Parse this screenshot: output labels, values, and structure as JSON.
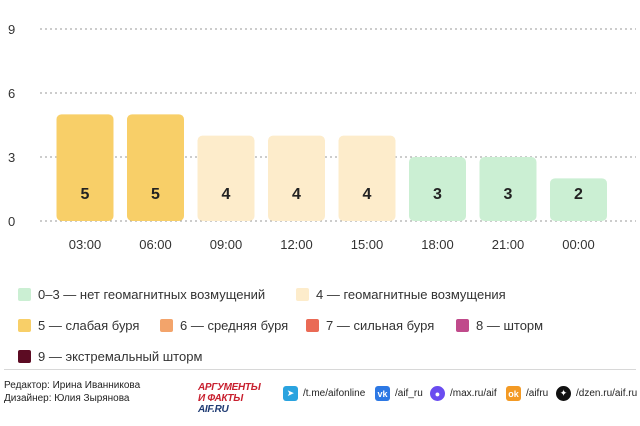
{
  "chart_data": {
    "type": "bar",
    "categories": [
      "03:00",
      "06:00",
      "09:00",
      "12:00",
      "15:00",
      "18:00",
      "21:00",
      "00:00"
    ],
    "values": [
      5,
      5,
      4,
      4,
      4,
      3,
      3,
      2
    ],
    "data_labels": [
      "5",
      "5",
      "4",
      "4",
      "4",
      "3",
      "3",
      "2"
    ],
    "ylim": [
      0,
      9
    ],
    "yticks": [
      "0",
      "3",
      "6",
      "9"
    ],
    "grid": true,
    "title": "",
    "xlabel": "",
    "ylabel": ""
  },
  "level_colors": {
    "quiet": "#cbefd3",
    "disturbed": "#fdeccb",
    "weak_storm": "#f8cf68",
    "moderate_storm": "#f3a46b",
    "strong_storm": "#ea6a55",
    "severe_storm": "#c04a8b",
    "extreme_storm": "#5c0b23"
  },
  "legend": {
    "rows": [
      [
        {
          "label": "0–3 — нет геомагнитных возмущений",
          "color": "#cbefd3"
        },
        {
          "label": "4 — геомагнитные возмущения",
          "color": "#fdeccb"
        }
      ],
      [
        {
          "label": "5 — слабая буря",
          "color": "#f8cf68"
        },
        {
          "label": "6 — средняя буря",
          "color": "#f3a46b"
        },
        {
          "label": "7 — сильная буря",
          "color": "#ea6a55"
        },
        {
          "label": "8 — шторм",
          "color": "#c04a8b"
        }
      ],
      [
        {
          "label": "9 — экстремальный шторм",
          "color": "#5c0b23"
        }
      ]
    ]
  },
  "footer": {
    "editor": "Редактор: Ирина Иванникова",
    "designer": "Дизайнер: Юлия Зырянова",
    "logo_line1": "АРГУМЕНТЫ",
    "logo_line2a": "И ФАКТЫ",
    "logo_line2b": " AIF.RU",
    "socials": [
      {
        "icon": "telegram-icon",
        "text": "/t.me/aifonline",
        "color": "#2aa3df"
      },
      {
        "icon": "vk-icon",
        "text": "/aif_ru",
        "color": "#2d78e4"
      },
      {
        "icon": "max-icon",
        "text": "/max.ru/aif",
        "color": "#6a4cf0"
      },
      {
        "icon": "ok-icon",
        "text": "/aifru",
        "color": "#f39a24"
      },
      {
        "icon": "dzen-icon",
        "text": "/dzen.ru/aif.ru",
        "color": "#111111"
      }
    ]
  }
}
